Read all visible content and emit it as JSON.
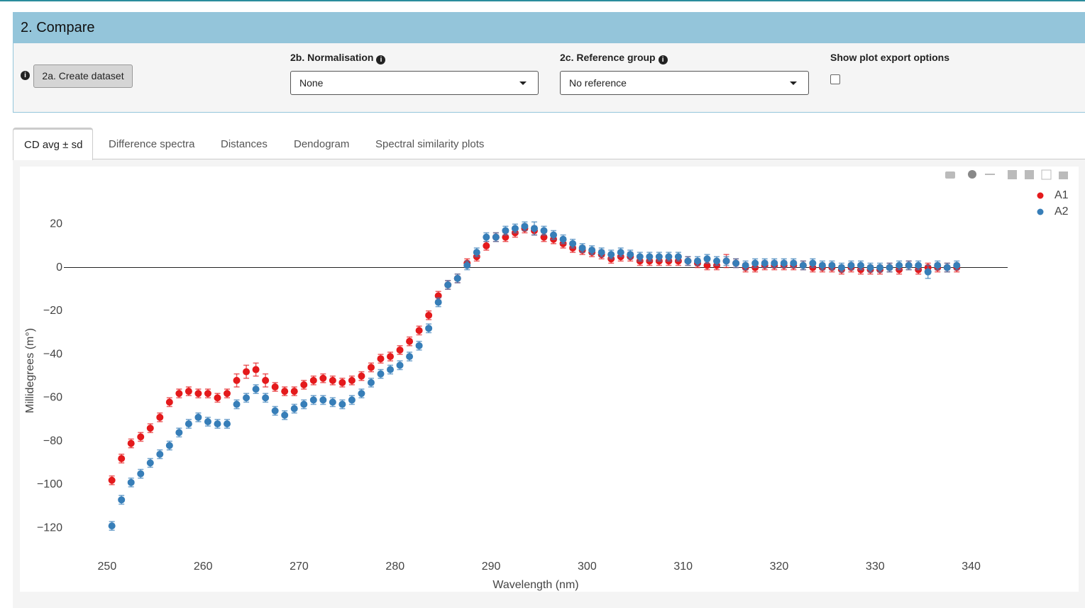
{
  "ui": {
    "panel_title": "2. Compare",
    "create_button": "2a. Create dataset",
    "normalisation_label": "2b. Normalisation",
    "normalisation_value": "None",
    "reference_label": "2c. Reference group",
    "reference_value": "No reference",
    "export_label": "Show plot export options",
    "tabs": [
      "CD avg ± sd",
      "Difference spectra",
      "Distances",
      "Dendogram",
      "Spectral similarity plots"
    ]
  },
  "chart_data": {
    "type": "scatter",
    "xlabel": "Wavelength (nm)",
    "ylabel": "Millidegrees (m°)",
    "xlim": [
      245.5,
      343.8
    ],
    "ylim": [
      -133,
      40
    ],
    "xticks": [
      250,
      260,
      270,
      280,
      290,
      300,
      310,
      320,
      330,
      340
    ],
    "yticks": [
      {
        "value": -120,
        "label": "−120"
      },
      {
        "value": -100,
        "label": "−100"
      },
      {
        "value": -80,
        "label": "−80"
      },
      {
        "value": -60,
        "label": "−60"
      },
      {
        "value": -40,
        "label": "−40"
      },
      {
        "value": -20,
        "label": "−20"
      },
      0,
      20
    ],
    "zeroline": true,
    "legend": "top-right",
    "x": [
      250.5,
      251.5,
      252.5,
      253.5,
      254.5,
      255.5,
      256.5,
      257.5,
      258.5,
      259.5,
      260.5,
      261.5,
      262.5,
      263.5,
      264.5,
      265.5,
      266.5,
      267.5,
      268.5,
      269.5,
      270.5,
      271.5,
      272.5,
      273.5,
      274.5,
      275.5,
      276.5,
      277.5,
      278.5,
      279.5,
      280.5,
      281.5,
      282.5,
      283.5,
      284.5,
      285.5,
      286.5,
      287.5,
      288.5,
      289.5,
      290.5,
      291.5,
      292.5,
      293.5,
      294.5,
      295.5,
      296.5,
      297.5,
      298.5,
      299.5,
      300.5,
      301.5,
      302.5,
      303.5,
      304.5,
      305.5,
      306.5,
      307.5,
      308.5,
      309.5,
      310.5,
      311.5,
      312.5,
      313.5,
      314.5,
      315.5,
      316.5,
      317.5,
      318.5,
      319.5,
      320.5,
      321.5,
      322.5,
      323.5,
      324.5,
      325.5,
      326.5,
      327.5,
      328.5,
      329.5,
      330.5,
      331.5,
      332.5,
      333.5,
      334.5,
      335.5,
      336.5,
      337.5,
      338.5
    ],
    "series": [
      {
        "name": "A1",
        "color": "#e41a1c",
        "values": [
          -98,
          -88,
          -81,
          -78,
          -74,
          -69,
          -62,
          -58,
          -57,
          -58,
          -58,
          -60,
          -58,
          -52,
          -48,
          -47,
          -52,
          -55,
          -57,
          -57,
          -54,
          -52,
          -51,
          -52,
          -53,
          -52,
          -50,
          -46,
          -42,
          -41,
          -38,
          -34,
          -29,
          -22,
          -13,
          -8,
          -5,
          2,
          5,
          10,
          14,
          14,
          16,
          18,
          17,
          14,
          13,
          11,
          9,
          8,
          7,
          6,
          4,
          5,
          5,
          3,
          3,
          3,
          3,
          3,
          3,
          2,
          1,
          1,
          3,
          2,
          0,
          0,
          1,
          1,
          1,
          1,
          1,
          0,
          0,
          0,
          -1,
          0,
          -1,
          -1,
          -1,
          0,
          -1,
          1,
          -1,
          0,
          0,
          0,
          0
        ],
        "errors": [
          2,
          2,
          2,
          2,
          2,
          2,
          2,
          2,
          2,
          2,
          2,
          2,
          2,
          3,
          3,
          3,
          3,
          2,
          2,
          2,
          2,
          2,
          2,
          2,
          2,
          2,
          2,
          2,
          2,
          2,
          2,
          2,
          2,
          2,
          2,
          2,
          2,
          2,
          2,
          2,
          2,
          2,
          2,
          2,
          2,
          2,
          2,
          2,
          2,
          2,
          2,
          2,
          2,
          2,
          2,
          2,
          2,
          2,
          2,
          2,
          2,
          2,
          2,
          2,
          3,
          2,
          2,
          2,
          2,
          2,
          2,
          2,
          2,
          2,
          2,
          2,
          2,
          2,
          2,
          2,
          2,
          2,
          2,
          2,
          2,
          2,
          2,
          2,
          2
        ]
      },
      {
        "name": "A2",
        "color": "#377eb8",
        "values": [
          -119,
          -107,
          -99,
          -95,
          -90,
          -86,
          -82,
          -76,
          -72,
          -69,
          -71,
          -72,
          -72,
          -63,
          -60,
          -56,
          -60,
          -66,
          -68,
          -65,
          -63,
          -61,
          -61,
          -62,
          -63,
          -61,
          -58,
          -53,
          -49,
          -47,
          -45,
          -41,
          -36,
          -28,
          -16,
          -8,
          -5,
          1,
          7,
          14,
          14,
          17,
          18,
          19,
          18,
          17,
          15,
          13,
          11,
          9,
          8,
          7,
          6,
          7,
          6,
          5,
          5,
          5,
          5,
          5,
          3,
          3,
          4,
          3,
          3,
          2,
          1,
          2,
          2,
          2,
          2,
          2,
          1,
          2,
          1,
          1,
          0,
          1,
          1,
          0,
          0,
          0,
          1,
          1,
          1,
          -2,
          1,
          0,
          1
        ],
        "errors": [
          2,
          2,
          2,
          2,
          2,
          2,
          2,
          2,
          2,
          2,
          2,
          2,
          2,
          2,
          2,
          2,
          2,
          2,
          2,
          2,
          2,
          2,
          2,
          2,
          2,
          2,
          2,
          2,
          2,
          2,
          2,
          2,
          2,
          2,
          2,
          2,
          2,
          2,
          2,
          2,
          2,
          2,
          2,
          2,
          3,
          2,
          2,
          2,
          2,
          2,
          2,
          2,
          2,
          2,
          2,
          2,
          2,
          2,
          2,
          2,
          2,
          2,
          2,
          2,
          2,
          2,
          2,
          2,
          2,
          2,
          2,
          2,
          2,
          2,
          2,
          2,
          2,
          2,
          2,
          2,
          2,
          2,
          2,
          2,
          2,
          3,
          2,
          2,
          2
        ]
      }
    ]
  }
}
